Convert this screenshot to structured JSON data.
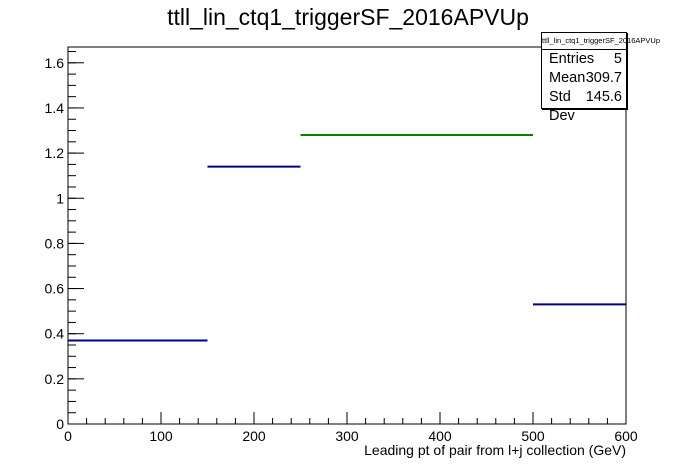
{
  "chart_data": {
    "type": "bar",
    "title": "ttll_lin_ctq1_triggerSF_2016APVUp",
    "xlabel": "Leading pt of pair from l+j collection (GeV)",
    "ylabel": "",
    "xlim": [
      0,
      600
    ],
    "ylim": [
      0,
      1.67
    ],
    "x_ticks": [
      "0",
      "100",
      "200",
      "300",
      "400",
      "500",
      "600"
    ],
    "y_ticks": [
      "0",
      "0.2",
      "0.4",
      "0.6",
      "0.8",
      "1",
      "1.2",
      "1.4",
      "1.6"
    ],
    "bins": [
      {
        "low": 0,
        "high": 150,
        "value": 0.37,
        "color": "#000080"
      },
      {
        "low": 150,
        "high": 250,
        "value": 1.14,
        "color": "#000080"
      },
      {
        "low": 250,
        "high": 500,
        "value": 1.28,
        "color": "#008000"
      },
      {
        "low": 500,
        "high": 600,
        "value": 0.53,
        "color": "#000080"
      }
    ],
    "grid": false,
    "legend": "top-right",
    "stats": {
      "title": "ttll_lin_ctq1_triggerSF_2016APVUp",
      "rows": [
        {
          "label": "Entries",
          "value": "5"
        },
        {
          "label": "Mean",
          "value": "309.7"
        },
        {
          "label": "Std Dev",
          "value": "145.6"
        }
      ]
    }
  }
}
